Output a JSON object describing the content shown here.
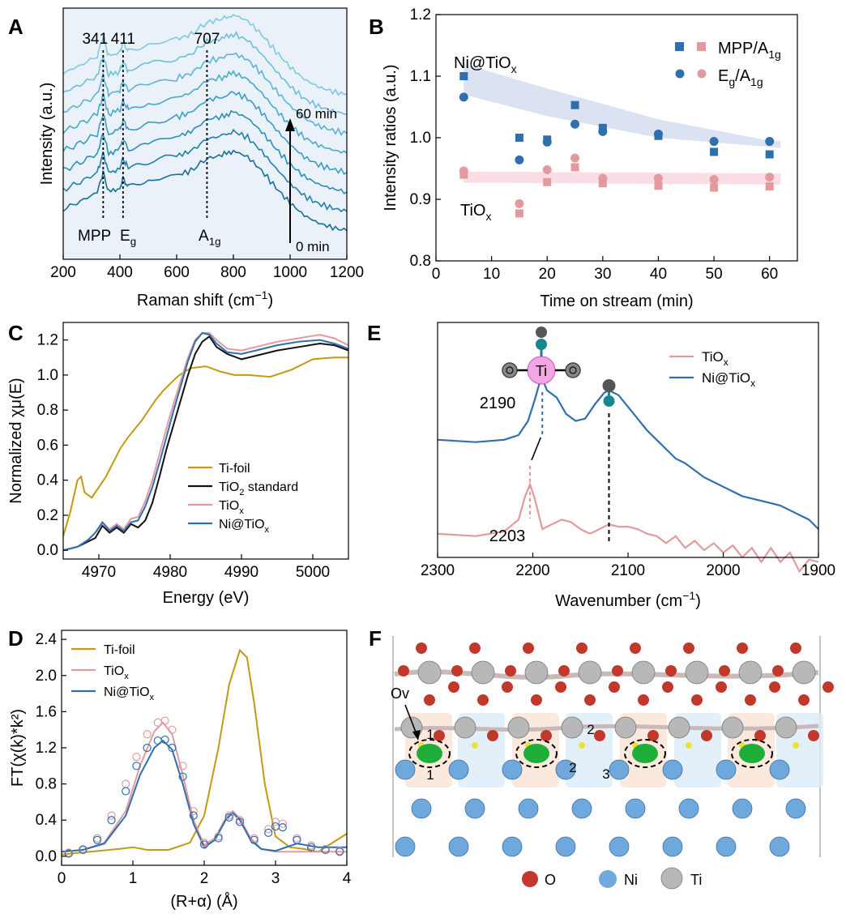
{
  "colors": {
    "blue": "#2f6fad",
    "pink": "#e39a9f",
    "gold": "#c29a12",
    "black": "#111111",
    "teal_dark": "#1f7fa3",
    "teal_light": "#8fd0e6",
    "band_blue": "#dbe3f3",
    "band_pink": "#fbdde6",
    "panelA_bg": "#eaf1f9",
    "O_color": "#c0392b",
    "Ni_color": "#6fa8dc",
    "Ti_color": "#b8b8b8",
    "green": "#1fae3a",
    "yellow": "#e8e23a"
  },
  "panels": {
    "a": "A",
    "b": "B",
    "c": "C",
    "d": "D",
    "e": "E",
    "f": "F"
  },
  "chart_data": [
    {
      "id": "A",
      "type": "line",
      "xlabel": "Raman shift (cm",
      "xlabel_sup": "−1",
      "xlabel_end": ")",
      "ylabel": "Intensity (a.u.)",
      "xlim": [
        200,
        1200
      ],
      "xticks": [
        "200",
        "400",
        "600",
        "800",
        "1000",
        "1200"
      ],
      "peaks": [
        {
          "x": 341,
          "label": "341"
        },
        {
          "x": 411,
          "label": "411"
        },
        {
          "x": 707,
          "label": "707"
        }
      ],
      "mode_labels": [
        {
          "base": "MPP",
          "sub": ""
        },
        {
          "base": "E",
          "sub": "g"
        },
        {
          "base": "A",
          "sub": "1g"
        }
      ],
      "arrow_top": "60 min",
      "arrow_bottom": "0 min",
      "n_series": 8,
      "series_base_profile": {
        "x": [
          200,
          260,
          320,
          341,
          360,
          400,
          411,
          430,
          500,
          600,
          650,
          707,
          760,
          800,
          850,
          900,
          950,
          1000,
          1050,
          1100,
          1150,
          1200
        ],
        "y": [
          0.22,
          0.27,
          0.33,
          0.46,
          0.33,
          0.36,
          0.42,
          0.36,
          0.4,
          0.44,
          0.47,
          0.55,
          0.57,
          0.6,
          0.56,
          0.47,
          0.36,
          0.26,
          0.18,
          0.13,
          0.1,
          0.08
        ]
      }
    },
    {
      "id": "B",
      "type": "scatter",
      "xlabel": "Time on stream (min)",
      "ylabel": "Intensity ratios (a.u.)",
      "xlim": [
        0,
        65
      ],
      "ylim": [
        0.8,
        1.2
      ],
      "xticks": [
        "0",
        "10",
        "20",
        "30",
        "40",
        "50",
        "60"
      ],
      "yticks": [
        "0.8",
        "0.9",
        "1.0",
        "1.1",
        "1.2"
      ],
      "text_NiTiOx": {
        "base": "Ni@TiO",
        "sub": "x"
      },
      "text_TiOx": {
        "base": "TiO",
        "sub": "x"
      },
      "legend": [
        {
          "marker": "square",
          "label": "MPP/A",
          "sub": "1g"
        },
        {
          "marker": "circle",
          "label": "E",
          "sub": "g",
          "label2": "/A",
          "sub2": "1g"
        }
      ],
      "x": [
        5,
        15,
        20,
        25,
        30,
        40,
        50,
        60
      ],
      "series": [
        {
          "name": "Ni@TiOx MPP/A1g",
          "marker": "square",
          "color": "blue",
          "values": [
            1.1,
            1.0,
            0.997,
            1.053,
            1.016,
            1.003,
            0.977,
            0.973
          ]
        },
        {
          "name": "Ni@TiOx Eg/A1g",
          "marker": "circle",
          "color": "blue",
          "values": [
            1.066,
            0.964,
            0.993,
            1.022,
            1.01,
            1.006,
            0.994,
            0.994
          ]
        },
        {
          "name": "TiOx MPP/A1g",
          "marker": "square",
          "color": "pink",
          "values": [
            0.94,
            0.877,
            0.928,
            0.952,
            0.926,
            0.922,
            0.919,
            0.921
          ]
        },
        {
          "name": "TiOx Eg/A1g",
          "marker": "circle",
          "color": "pink",
          "values": [
            0.946,
            0.893,
            0.948,
            0.967,
            0.934,
            0.934,
            0.932,
            0.936
          ]
        }
      ],
      "bands": [
        {
          "color": "band_blue",
          "x": [
            5,
            20,
            40,
            60,
            62
          ],
          "upper": [
            1.12,
            1.08,
            1.03,
            0.995,
            0.995
          ],
          "lower": [
            1.07,
            1.035,
            1.0,
            0.985,
            0.983
          ]
        },
        {
          "color": "band_pink",
          "x": [
            5,
            62
          ],
          "upper": [
            0.945,
            0.942
          ],
          "lower": [
            0.927,
            0.924
          ]
        }
      ]
    },
    {
      "id": "C",
      "type": "line",
      "xlabel": "Energy (eV)",
      "ylabel": "Normalized χμ(E)",
      "xlim": [
        4965,
        5005
      ],
      "ylim": [
        -0.05,
        1.3
      ],
      "xticks": [
        "4970",
        "4980",
        "4990",
        "5000"
      ],
      "yticks": [
        "0.0",
        "0.2",
        "0.4",
        "0.6",
        "0.8",
        "1.0",
        "1.2"
      ],
      "series": [
        {
          "name": "Ti-foil",
          "color": "gold",
          "x": [
            4965,
            4966,
            4967,
            4967.5,
            4968,
            4969,
            4970,
            4971,
            4972,
            4973,
            4974,
            4975,
            4976,
            4977,
            4978,
            4979,
            4980,
            4981,
            4982,
            4983,
            4985,
            4987,
            4989,
            4991,
            4994,
            4997,
            5000,
            5003,
            5005
          ],
          "y": [
            0.08,
            0.22,
            0.4,
            0.42,
            0.33,
            0.3,
            0.36,
            0.42,
            0.5,
            0.58,
            0.64,
            0.69,
            0.74,
            0.8,
            0.86,
            0.91,
            0.95,
            0.99,
            1.02,
            1.04,
            1.05,
            1.02,
            1.0,
            1.0,
            0.99,
            1.03,
            1.09,
            1.1,
            1.1
          ]
        },
        {
          "name": "TiO2 standard",
          "color": "black",
          "x": [
            4965,
            4967,
            4968.5,
            4969.5,
            4970.5,
            4971.5,
            4972.5,
            4973.5,
            4974.5,
            4975.5,
            4976.5,
            4977.5,
            4978.5,
            4979.5,
            4980.5,
            4981.5,
            4982.5,
            4983.5,
            4984.5,
            4985.5,
            4986.5,
            4988,
            4990,
            4992,
            4995,
            4998,
            5001,
            5003,
            5005
          ],
          "y": [
            0.0,
            0.02,
            0.05,
            0.07,
            0.14,
            0.1,
            0.13,
            0.1,
            0.15,
            0.13,
            0.17,
            0.27,
            0.42,
            0.58,
            0.72,
            0.86,
            1.0,
            1.12,
            1.19,
            1.22,
            1.16,
            1.12,
            1.09,
            1.11,
            1.14,
            1.16,
            1.18,
            1.17,
            1.14
          ]
        },
        {
          "name": "TiOx",
          "color": "pink",
          "x": [
            4965,
            4967,
            4968.5,
            4969.5,
            4970.5,
            4971.5,
            4972.5,
            4973.5,
            4974.5,
            4975.5,
            4976.5,
            4977.5,
            4978.5,
            4979.5,
            4980.5,
            4981.5,
            4982.5,
            4983.5,
            4984.5,
            4985.5,
            4986.5,
            4988,
            4990,
            4992,
            4995,
            4998,
            5001,
            5003,
            5005
          ],
          "y": [
            0.0,
            0.02,
            0.06,
            0.1,
            0.16,
            0.12,
            0.15,
            0.12,
            0.18,
            0.19,
            0.28,
            0.4,
            0.55,
            0.7,
            0.84,
            0.97,
            1.1,
            1.2,
            1.24,
            1.24,
            1.2,
            1.15,
            1.14,
            1.16,
            1.19,
            1.21,
            1.23,
            1.21,
            1.17
          ]
        },
        {
          "name": "Ni@TiOx",
          "color": "blue",
          "x": [
            4965,
            4967,
            4968.5,
            4969.5,
            4970.5,
            4971.5,
            4972.5,
            4973.5,
            4974.5,
            4975.5,
            4976.5,
            4977.5,
            4978.5,
            4979.5,
            4980.5,
            4981.5,
            4982.5,
            4983.5,
            4984.5,
            4985.5,
            4986.5,
            4988,
            4990,
            4992,
            4995,
            4998,
            5001,
            5003,
            5005
          ],
          "y": [
            0.0,
            0.02,
            0.06,
            0.1,
            0.16,
            0.11,
            0.14,
            0.11,
            0.16,
            0.17,
            0.25,
            0.36,
            0.5,
            0.65,
            0.8,
            0.94,
            1.08,
            1.19,
            1.24,
            1.23,
            1.18,
            1.13,
            1.12,
            1.14,
            1.17,
            1.19,
            1.2,
            1.18,
            1.15
          ]
        }
      ],
      "legend": [
        {
          "key": "Ti-foil",
          "label": "Ti-foil",
          "sub": "",
          "tail": ""
        },
        {
          "key": "TiO2 standard",
          "label": "TiO",
          "sub": "2",
          "tail": " standard"
        },
        {
          "key": "TiOx",
          "label": "TiO",
          "sub": "x",
          "tail": ""
        },
        {
          "key": "Ni@TiOx",
          "label": "Ni@TiO",
          "sub": "x",
          "tail": ""
        }
      ]
    },
    {
      "id": "D",
      "type": "line",
      "xlabel": "(R+α) (Å)",
      "ylabel": "FT(χ(k)*k²)",
      "xlim": [
        0,
        4
      ],
      "ylim": [
        -0.1,
        2.5
      ],
      "xticks": [
        "0",
        "1",
        "2",
        "3",
        "4"
      ],
      "yticks": [
        "0.0",
        "0.4",
        "0.8",
        "1.2",
        "1.6",
        "2.0",
        "2.4"
      ],
      "series": [
        {
          "name": "Ti-foil",
          "color": "gold",
          "x": [
            0,
            0.4,
            0.8,
            1.0,
            1.2,
            1.5,
            1.8,
            2.0,
            2.2,
            2.35,
            2.5,
            2.6,
            2.7,
            2.85,
            3.0,
            3.2,
            3.4,
            3.6,
            3.8,
            4.0
          ],
          "y": [
            0.02,
            0.05,
            0.08,
            0.1,
            0.07,
            0.07,
            0.15,
            0.45,
            1.2,
            1.9,
            2.28,
            2.2,
            1.7,
            0.8,
            0.22,
            0.1,
            0.08,
            0.05,
            0.15,
            0.25
          ]
        },
        {
          "name": "TiOx",
          "color": "pink",
          "x": [
            0,
            0.3,
            0.6,
            0.9,
            1.1,
            1.3,
            1.42,
            1.55,
            1.7,
            1.85,
            2.0,
            2.15,
            2.3,
            2.4,
            2.5,
            2.65,
            2.8,
            3.0,
            3.3,
            3.6,
            4.0
          ],
          "y": [
            0.05,
            0.07,
            0.15,
            0.5,
            1.0,
            1.38,
            1.48,
            1.35,
            0.9,
            0.4,
            0.12,
            0.2,
            0.42,
            0.5,
            0.42,
            0.2,
            0.08,
            0.05,
            0.05,
            0.05,
            0.05
          ]
        },
        {
          "name": "Ni@TiOx",
          "color": "blue",
          "x": [
            0,
            0.3,
            0.6,
            0.9,
            1.1,
            1.3,
            1.42,
            1.55,
            1.7,
            1.85,
            2.0,
            2.15,
            2.3,
            2.4,
            2.5,
            2.65,
            2.8,
            3.0,
            3.3,
            3.6,
            4.0
          ],
          "y": [
            0.05,
            0.07,
            0.14,
            0.45,
            0.9,
            1.2,
            1.28,
            1.18,
            0.8,
            0.36,
            0.1,
            0.18,
            0.4,
            0.48,
            0.4,
            0.18,
            0.08,
            0.06,
            0.14,
            0.1,
            0.1
          ]
        },
        {
          "name": "TiOx fit (open circles)",
          "color": "pink",
          "marker": "circle-open",
          "x": [
            0.1,
            0.3,
            0.5,
            0.7,
            0.9,
            1.05,
            1.2,
            1.35,
            1.45,
            1.55,
            1.7,
            1.85,
            2.0,
            2.2,
            2.35,
            2.5,
            2.7,
            2.9,
            3.0,
            3.1,
            3.3,
            3.5,
            3.7,
            3.9
          ],
          "y": [
            0.04,
            0.08,
            0.2,
            0.45,
            0.8,
            1.1,
            1.35,
            1.48,
            1.5,
            1.4,
            1.0,
            0.5,
            0.15,
            0.22,
            0.45,
            0.4,
            0.2,
            0.3,
            0.38,
            0.36,
            0.2,
            0.12,
            0.08,
            0.06
          ]
        },
        {
          "name": "Ni@TiOx fit (open circles)",
          "color": "blue",
          "marker": "circle-open",
          "x": [
            0.1,
            0.3,
            0.5,
            0.7,
            0.9,
            1.05,
            1.2,
            1.35,
            1.45,
            1.55,
            1.7,
            1.85,
            2.0,
            2.2,
            2.35,
            2.5,
            2.7,
            2.9,
            3.0,
            3.1,
            3.3,
            3.5,
            3.7,
            3.9
          ],
          "y": [
            0.03,
            0.07,
            0.18,
            0.4,
            0.72,
            1.0,
            1.2,
            1.28,
            1.29,
            1.2,
            0.88,
            0.45,
            0.13,
            0.2,
            0.43,
            0.38,
            0.18,
            0.26,
            0.33,
            0.32,
            0.18,
            0.1,
            0.07,
            0.05
          ]
        }
      ],
      "legend": [
        {
          "key": "Ti-foil",
          "label": "Ti-foil",
          "sub": ""
        },
        {
          "key": "TiOx",
          "label": "TiO",
          "sub": "x"
        },
        {
          "key": "Ni@TiOx",
          "label": "Ni@TiO",
          "sub": "x"
        }
      ]
    },
    {
      "id": "E",
      "type": "line",
      "xlabel": "Wavenumber (cm",
      "xlabel_sup": "−1",
      "xlabel_end": ")",
      "xlim": [
        2300,
        1900
      ],
      "xticks": [
        "2300",
        "2200",
        "2100",
        "2000",
        "1900"
      ],
      "annotations": [
        "2190",
        "2203"
      ],
      "ti_label": "Ti",
      "series": [
        {
          "name": "TiOx",
          "color": "pink",
          "x": [
            2300,
            2260,
            2230,
            2215,
            2208,
            2203,
            2198,
            2190,
            2180,
            2170,
            2160,
            2150,
            2140,
            2130,
            2120,
            2110,
            2100,
            2090,
            2080,
            2070,
            2060,
            2050,
            2040,
            2030,
            2020,
            2010,
            2000,
            1990,
            1980,
            1970,
            1960,
            1950,
            1940,
            1930,
            1920,
            1910,
            1900
          ],
          "y": [
            0.28,
            0.27,
            0.29,
            0.34,
            0.44,
            0.49,
            0.43,
            0.3,
            0.32,
            0.34,
            0.33,
            0.3,
            0.28,
            0.3,
            0.32,
            0.31,
            0.31,
            0.3,
            0.28,
            0.27,
            0.24,
            0.27,
            0.22,
            0.25,
            0.21,
            0.24,
            0.2,
            0.23,
            0.18,
            0.22,
            0.16,
            0.22,
            0.16,
            0.2,
            0.12,
            0.17,
            0.16
          ]
        },
        {
          "name": "Ni@TiOx",
          "color": "blue",
          "x": [
            2300,
            2260,
            2230,
            2215,
            2205,
            2198,
            2193,
            2190,
            2185,
            2175,
            2165,
            2155,
            2145,
            2135,
            2125,
            2120,
            2110,
            2100,
            2090,
            2080,
            2070,
            2060,
            2050,
            2040,
            2030,
            2020,
            2010,
            2000,
            1990,
            1980,
            1970,
            1960,
            1950,
            1940,
            1930,
            1920,
            1910,
            1900
          ],
          "y": [
            0.68,
            0.67,
            0.68,
            0.7,
            0.76,
            0.85,
            0.92,
            0.94,
            0.89,
            0.86,
            0.79,
            0.76,
            0.77,
            0.83,
            0.88,
            0.89,
            0.87,
            0.82,
            0.77,
            0.72,
            0.68,
            0.64,
            0.6,
            0.58,
            0.55,
            0.52,
            0.5,
            0.48,
            0.46,
            0.44,
            0.43,
            0.42,
            0.41,
            0.4,
            0.38,
            0.36,
            0.34,
            0.3
          ]
        }
      ],
      "legend": [
        {
          "key": "TiOx",
          "label": "TiO",
          "sub": "x"
        },
        {
          "key": "Ni@TiOx",
          "label": "Ni@TiO",
          "sub": "x"
        }
      ]
    }
  ],
  "panelF": {
    "ov_label": "Ov",
    "site_labels": [
      "1",
      "1",
      "2",
      "2",
      "3"
    ],
    "legend": [
      "O",
      "Ni",
      "Ti"
    ]
  }
}
